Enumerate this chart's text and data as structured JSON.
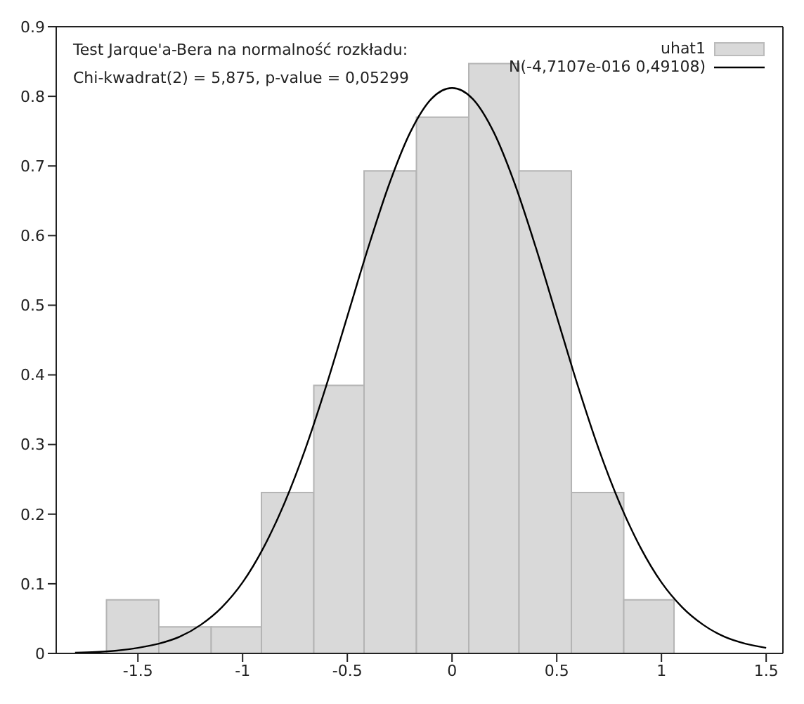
{
  "chart_data": {
    "type": "histogram",
    "bins": [
      -1.65,
      -1.4,
      -1.15,
      -0.91,
      -0.66,
      -0.42,
      -0.17,
      0.08,
      0.32,
      0.57,
      0.82,
      1.06
    ],
    "series": [
      {
        "name": "uhat1",
        "color": "#d9d9d9",
        "values": [
          0.077,
          0.038,
          0.038,
          0.231,
          0.385,
          0.693,
          0.77,
          0.847,
          0.693,
          0.231,
          0.077
        ]
      },
      {
        "type": "line",
        "name": "N(-4,7107e-016 0,49108)",
        "color": "#000000",
        "x": [
          -1.8,
          -1.7,
          -1.6,
          -1.5,
          -1.4,
          -1.3,
          -1.2,
          -1.1,
          -1.0,
          -0.9,
          -0.8,
          -0.7,
          -0.6,
          -0.5,
          -0.4,
          -0.3,
          -0.2,
          -0.1,
          0,
          0.1,
          0.2,
          0.3,
          0.4,
          0.5,
          0.6,
          0.7,
          0.8,
          0.9,
          1.0,
          1.1,
          1.2,
          1.3,
          1.4,
          1.5
        ],
        "values": [
          0.001,
          0.002,
          0.004,
          0.008,
          0.014,
          0.024,
          0.041,
          0.066,
          0.102,
          0.152,
          0.216,
          0.294,
          0.385,
          0.484,
          0.583,
          0.674,
          0.748,
          0.796,
          0.812,
          0.796,
          0.748,
          0.674,
          0.583,
          0.484,
          0.385,
          0.294,
          0.216,
          0.152,
          0.102,
          0.066,
          0.041,
          0.024,
          0.014,
          0.008
        ]
      }
    ],
    "xlim": [
      -1.89,
      1.58
    ],
    "xticks": [
      -1.5,
      -1,
      -0.5,
      0,
      0.5,
      1,
      1.5
    ],
    "ylim": [
      0,
      0.9
    ],
    "yticks": [
      0,
      0.1,
      0.2,
      0.3,
      0.4,
      0.5,
      0.6,
      0.7,
      0.8,
      0.9
    ],
    "legend": "top right",
    "annotations": [
      "Test Jarque'a-Bera na normalność rozkładu:",
      "Chi-kwadrat(2) = 5,875, p-value = 0,05299"
    ]
  }
}
